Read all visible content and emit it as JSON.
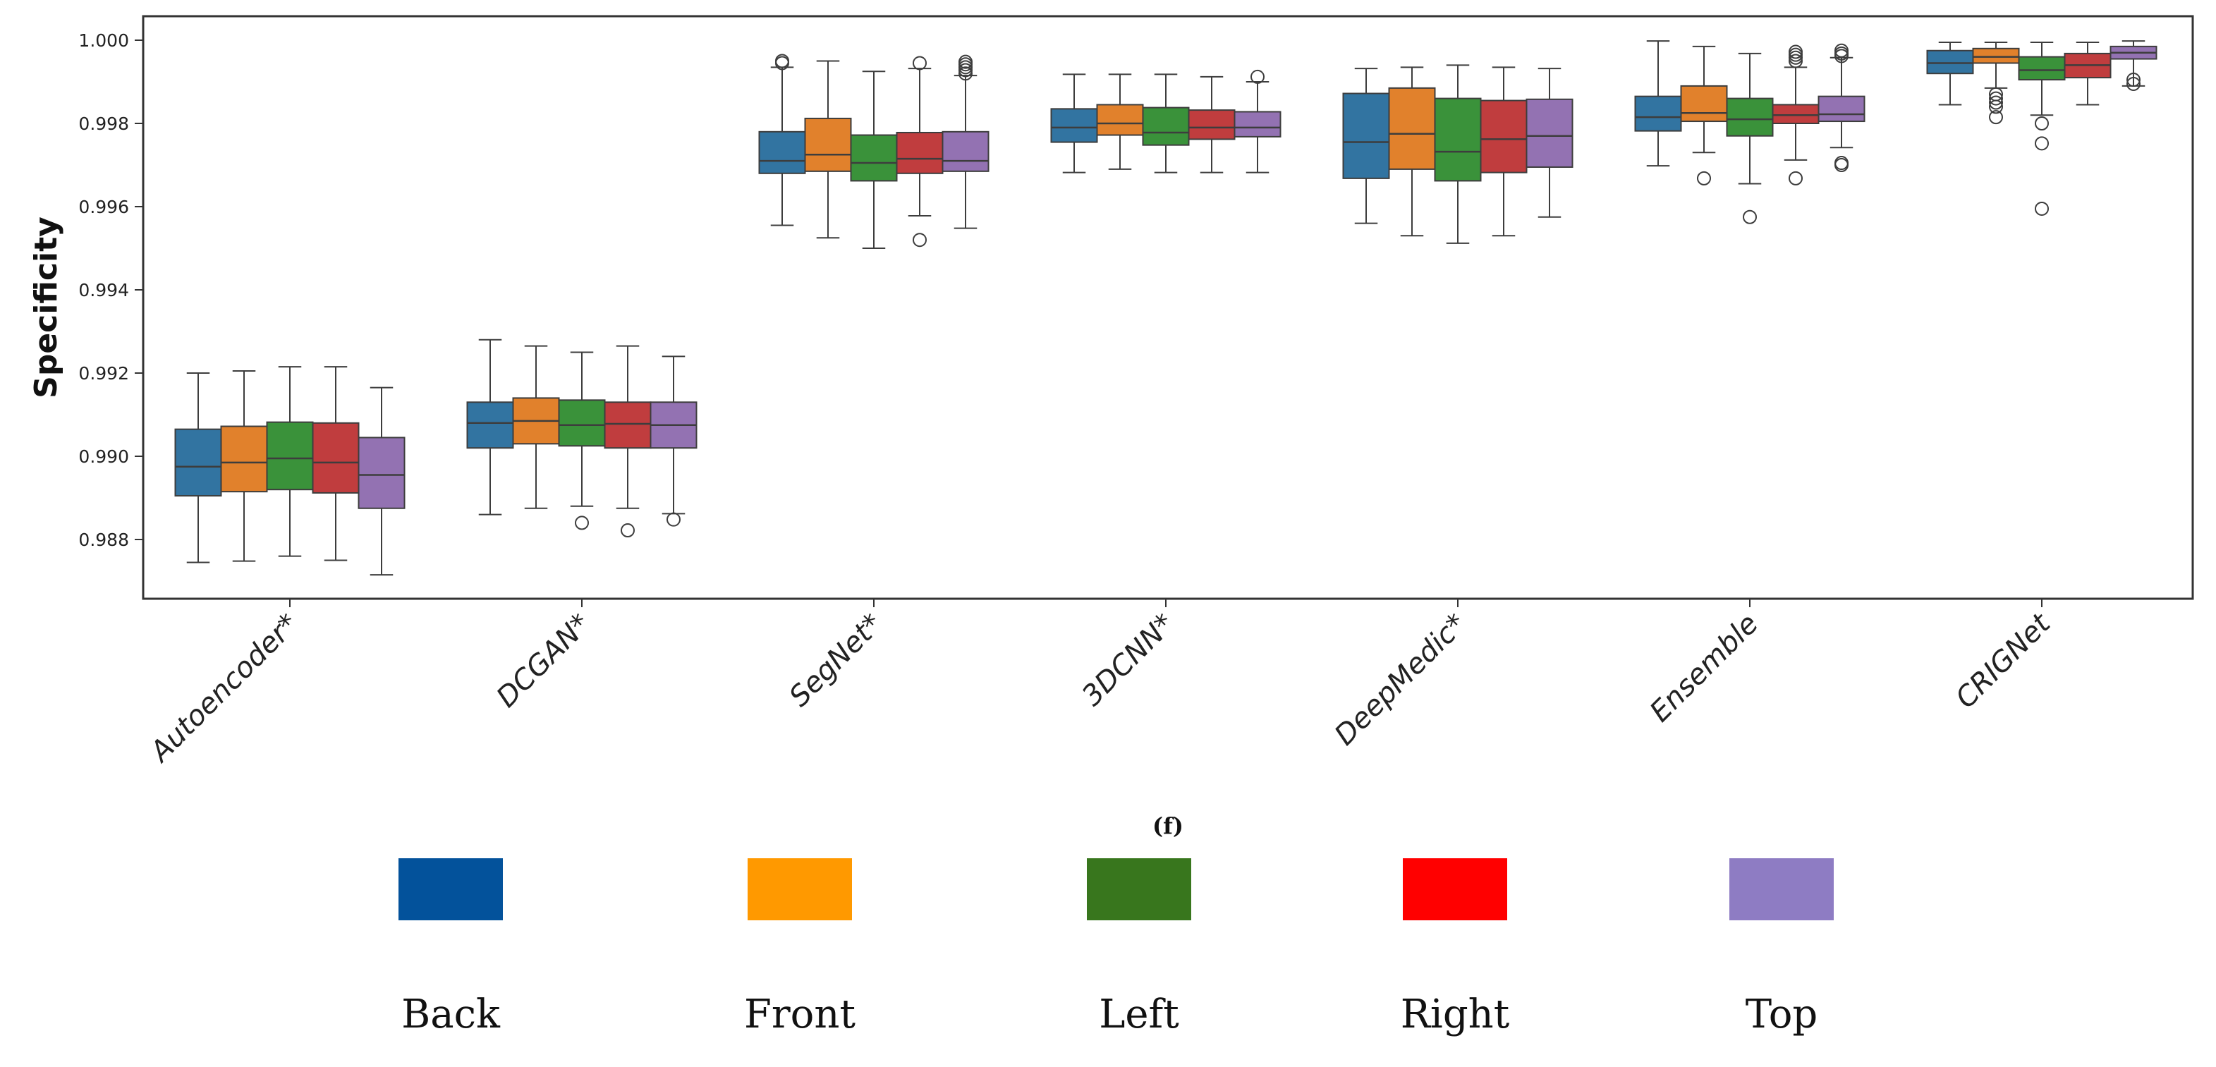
{
  "chart_data": {
    "type": "box",
    "title": "",
    "xlabel": "",
    "ylabel": "Specificity",
    "figure_label": "(f)",
    "ylim": [
      0.9866,
      1.0005
    ],
    "yticks": [
      0.988,
      0.99,
      0.992,
      0.994,
      0.996,
      0.998,
      1.0
    ],
    "ytick_labels": [
      "0.988",
      "0.990",
      "0.992",
      "0.994",
      "0.996",
      "0.998",
      "1.000"
    ],
    "grid": false,
    "legend_position": "bottom",
    "categories": [
      "Autoencoder*",
      "DCGAN*",
      "SegNet*",
      "3DCNN*",
      "DeepMedic*",
      "Ensemble",
      "CRIGNet"
    ],
    "series_colors": {
      "Back": "#3274a1",
      "Front": "#e1812c",
      "Left": "#3a923a",
      "Right": "#c03d3e",
      "Top": "#9372b2"
    },
    "legend": [
      {
        "name": "Back",
        "color": "#03529b"
      },
      {
        "name": "Front",
        "color": "#ff9900"
      },
      {
        "name": "Left",
        "color": "#38761d"
      },
      {
        "name": "Right",
        "color": "#ff0000"
      },
      {
        "name": "Top",
        "color": "#8e7cc3"
      }
    ],
    "series": [
      {
        "name": "Back",
        "boxes": [
          {
            "min": 0.98745,
            "q1": 0.98905,
            "median": 0.98975,
            "q3": 0.99065,
            "max": 0.992,
            "outliers": []
          },
          {
            "min": 0.9886,
            "q1": 0.9902,
            "median": 0.9908,
            "q3": 0.9913,
            "max": 0.9928,
            "outliers": []
          },
          {
            "min": 0.99555,
            "q1": 0.9968,
            "median": 0.9971,
            "q3": 0.9978,
            "max": 0.99935,
            "outliers": [
              0.99945,
              0.9995
            ]
          },
          {
            "min": 0.99682,
            "q1": 0.99755,
            "median": 0.9979,
            "q3": 0.99835,
            "max": 0.99918,
            "outliers": []
          },
          {
            "min": 0.9956,
            "q1": 0.99668,
            "median": 0.99755,
            "q3": 0.99872,
            "max": 0.99932,
            "outliers": []
          },
          {
            "min": 0.99698,
            "q1": 0.99782,
            "median": 0.99815,
            "q3": 0.99865,
            "max": 0.99998,
            "outliers": []
          },
          {
            "min": 0.99845,
            "q1": 0.9992,
            "median": 0.99945,
            "q3": 0.99975,
            "max": 0.99995,
            "outliers": []
          }
        ]
      },
      {
        "name": "Front",
        "boxes": [
          {
            "min": 0.98748,
            "q1": 0.98915,
            "median": 0.98985,
            "q3": 0.99072,
            "max": 0.99205,
            "outliers": []
          },
          {
            "min": 0.98875,
            "q1": 0.9903,
            "median": 0.99085,
            "q3": 0.9914,
            "max": 0.99265,
            "outliers": []
          },
          {
            "min": 0.99525,
            "q1": 0.99685,
            "median": 0.99725,
            "q3": 0.99812,
            "max": 0.9995,
            "outliers": []
          },
          {
            "min": 0.9969,
            "q1": 0.99772,
            "median": 0.998,
            "q3": 0.99845,
            "max": 0.99918,
            "outliers": []
          },
          {
            "min": 0.9953,
            "q1": 0.9969,
            "median": 0.99775,
            "q3": 0.99885,
            "max": 0.99935,
            "outliers": []
          },
          {
            "min": 0.9973,
            "q1": 0.99805,
            "median": 0.99825,
            "q3": 0.9989,
            "max": 0.99985,
            "outliers": [
              0.99668
            ]
          },
          {
            "min": 0.99885,
            "q1": 0.99945,
            "median": 0.9996,
            "q3": 0.9998,
            "max": 0.99995,
            "outliers": [
              0.9987,
              0.9986,
              0.9985,
              0.9984,
              0.99815
            ]
          }
        ]
      },
      {
        "name": "Left",
        "boxes": [
          {
            "min": 0.9876,
            "q1": 0.9892,
            "median": 0.98995,
            "q3": 0.99082,
            "max": 0.99215,
            "outliers": []
          },
          {
            "min": 0.9888,
            "q1": 0.99025,
            "median": 0.99075,
            "q3": 0.99135,
            "max": 0.9925,
            "outliers": [
              0.9884
            ]
          },
          {
            "min": 0.995,
            "q1": 0.99662,
            "median": 0.99705,
            "q3": 0.99772,
            "max": 0.99925,
            "outliers": []
          },
          {
            "min": 0.99682,
            "q1": 0.99748,
            "median": 0.99778,
            "q3": 0.99838,
            "max": 0.99918,
            "outliers": []
          },
          {
            "min": 0.99512,
            "q1": 0.99662,
            "median": 0.99732,
            "q3": 0.9986,
            "max": 0.9994,
            "outliers": []
          },
          {
            "min": 0.99655,
            "q1": 0.9977,
            "median": 0.9981,
            "q3": 0.9986,
            "max": 0.99968,
            "outliers": [
              0.99575
            ]
          },
          {
            "min": 0.9982,
            "q1": 0.99905,
            "median": 0.99928,
            "q3": 0.9996,
            "max": 0.99995,
            "outliers": [
              0.998,
              0.99752,
              0.99595
            ]
          }
        ]
      },
      {
        "name": "Right",
        "boxes": [
          {
            "min": 0.9875,
            "q1": 0.98912,
            "median": 0.98985,
            "q3": 0.9908,
            "max": 0.99215,
            "outliers": []
          },
          {
            "min": 0.98875,
            "q1": 0.9902,
            "median": 0.99078,
            "q3": 0.9913,
            "max": 0.99265,
            "outliers": [
              0.98822
            ]
          },
          {
            "min": 0.99578,
            "q1": 0.9968,
            "median": 0.99715,
            "q3": 0.99778,
            "max": 0.99932,
            "outliers": [
              0.9952,
              0.99945
            ]
          },
          {
            "min": 0.99682,
            "q1": 0.99762,
            "median": 0.9979,
            "q3": 0.99832,
            "max": 0.99912,
            "outliers": []
          },
          {
            "min": 0.9953,
            "q1": 0.99682,
            "median": 0.99762,
            "q3": 0.99855,
            "max": 0.99935,
            "outliers": []
          },
          {
            "min": 0.99712,
            "q1": 0.998,
            "median": 0.9982,
            "q3": 0.99845,
            "max": 0.99935,
            "outliers": [
              0.99668,
              0.9995,
              0.99958,
              0.99965,
              0.99972
            ]
          },
          {
            "min": 0.99845,
            "q1": 0.9991,
            "median": 0.9994,
            "q3": 0.99968,
            "max": 0.99995,
            "outliers": []
          }
        ]
      },
      {
        "name": "Top",
        "boxes": [
          {
            "min": 0.98715,
            "q1": 0.98875,
            "median": 0.98955,
            "q3": 0.99045,
            "max": 0.99165,
            "outliers": []
          },
          {
            "min": 0.98862,
            "q1": 0.9902,
            "median": 0.99075,
            "q3": 0.9913,
            "max": 0.9924,
            "outliers": [
              0.98848
            ]
          },
          {
            "min": 0.99548,
            "q1": 0.99685,
            "median": 0.9971,
            "q3": 0.9978,
            "max": 0.99915,
            "outliers": [
              0.9992,
              0.99928,
              0.99935,
              0.99942,
              0.99948
            ]
          },
          {
            "min": 0.99682,
            "q1": 0.99768,
            "median": 0.9979,
            "q3": 0.99828,
            "max": 0.999,
            "outliers": [
              0.99912
            ]
          },
          {
            "min": 0.99575,
            "q1": 0.99695,
            "median": 0.9977,
            "q3": 0.99858,
            "max": 0.99932,
            "outliers": []
          },
          {
            "min": 0.99742,
            "q1": 0.99805,
            "median": 0.99822,
            "q3": 0.99865,
            "max": 0.99958,
            "outliers": [
              0.997,
              0.99705,
              0.99962,
              0.99968,
              0.99975
            ]
          },
          {
            "min": 0.9989,
            "q1": 0.99955,
            "median": 0.9997,
            "q3": 0.99985,
            "max": 0.99998,
            "outliers": [
              0.99905,
              0.99895
            ]
          }
        ]
      }
    ]
  }
}
